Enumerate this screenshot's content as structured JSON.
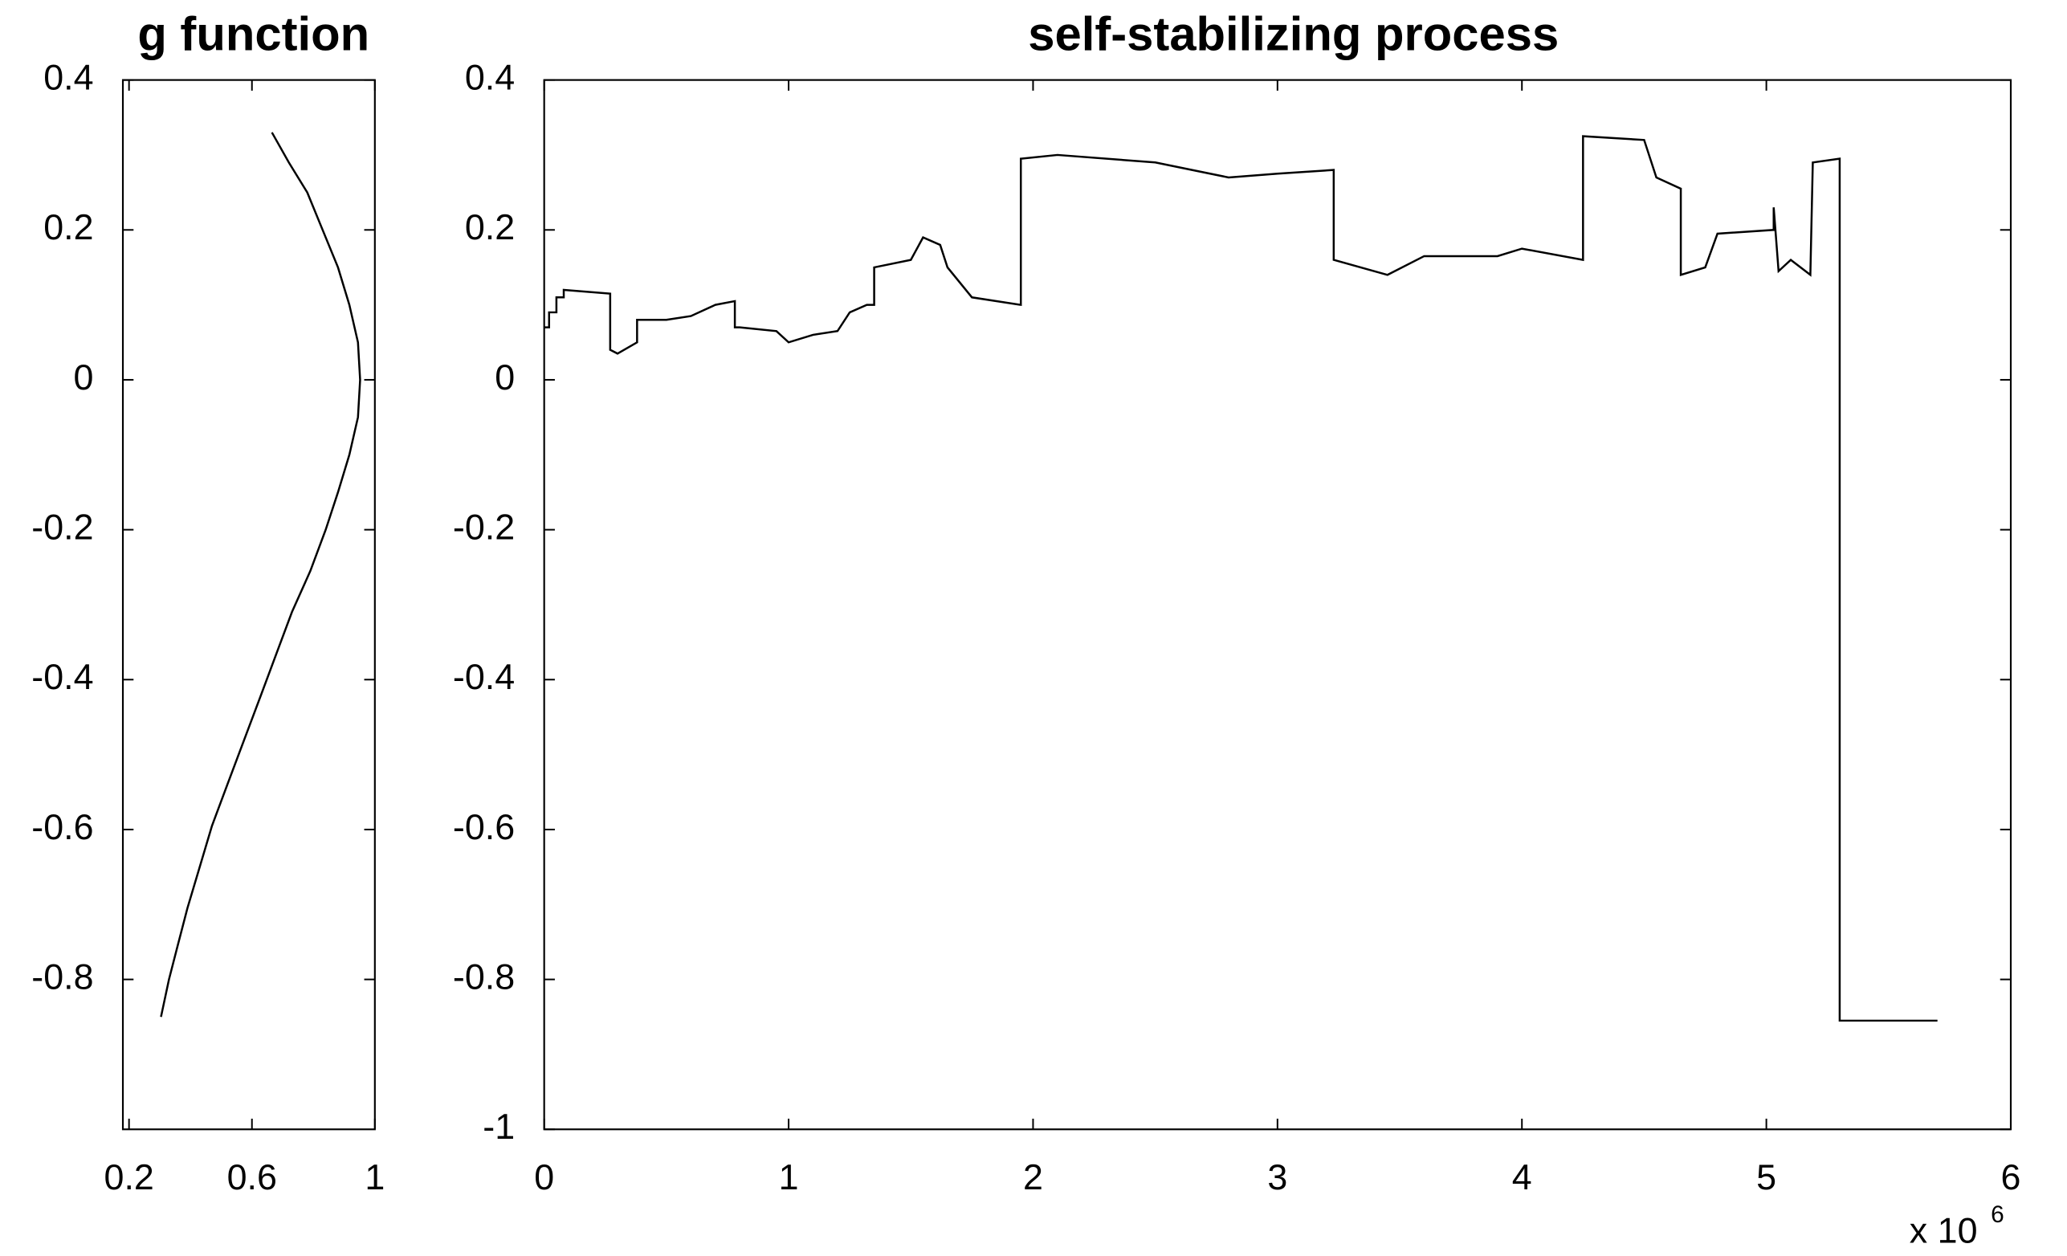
{
  "chart_data": [
    {
      "type": "line",
      "title": "g function",
      "x": [
        0.665,
        0.72,
        0.78,
        0.83,
        0.88,
        0.917,
        0.945,
        0.952,
        0.945,
        0.917,
        0.88,
        0.84,
        0.79,
        0.73,
        0.68,
        0.63,
        0.575,
        0.52,
        0.47,
        0.43,
        0.39,
        0.357,
        0.33,
        0.304
      ],
      "values": [
        0.33,
        0.29,
        0.25,
        0.2,
        0.15,
        0.1,
        0.05,
        0,
        -0.05,
        -0.1,
        -0.15,
        -0.2,
        -0.255,
        -0.31,
        -0.365,
        -0.42,
        -0.48,
        -0.54,
        -0.595,
        -0.65,
        -0.705,
        -0.757,
        -0.8,
        -0.85
      ],
      "color": "#000000",
      "xlim": [
        0.18,
        1
      ],
      "xticks": [
        0.2,
        0.6,
        1
      ],
      "ylim": [
        -1,
        0.4
      ],
      "yticks": [
        -0.8,
        -0.6,
        -0.4,
        -0.2,
        0,
        0.2,
        0.4
      ]
    },
    {
      "type": "line",
      "title": "self-stabilizing process",
      "x_multiplier": "x 10",
      "x_exponent": "6",
      "x": [
        0,
        0.02,
        0.02,
        0.05,
        0.05,
        0.08,
        0.08,
        0.27,
        0.27,
        0.3,
        0.38,
        0.38,
        0.5,
        0.6,
        0.7,
        0.78,
        0.78,
        0.8,
        0.95,
        1.0,
        1.1,
        1.2,
        1.25,
        1.32,
        1.35,
        1.35,
        1.5,
        1.55,
        1.62,
        1.65,
        1.75,
        1.95,
        1.95,
        2.1,
        2.5,
        2.65,
        2.8,
        3.0,
        3.23,
        3.23,
        3.45,
        3.6,
        3.9,
        4.0,
        4.25,
        4.25,
        4.5,
        4.55,
        4.65,
        4.65,
        4.75,
        4.8,
        5.03,
        5.03,
        5.05,
        5.1,
        5.18,
        5.19,
        5.3,
        5.3,
        5.7
      ],
      "values": [
        0.07,
        0.07,
        0.09,
        0.09,
        0.11,
        0.11,
        0.12,
        0.115,
        0.04,
        0.035,
        0.05,
        0.08,
        0.08,
        0.085,
        0.1,
        0.105,
        0.07,
        0.07,
        0.065,
        0.05,
        0.06,
        0.065,
        0.09,
        0.1,
        0.1,
        0.15,
        0.16,
        0.19,
        0.18,
        0.15,
        0.11,
        0.1,
        0.295,
        0.3,
        0.29,
        0.28,
        0.27,
        0.275,
        0.28,
        0.16,
        0.14,
        0.165,
        0.165,
        0.175,
        0.16,
        0.325,
        0.32,
        0.27,
        0.255,
        0.14,
        0.15,
        0.195,
        0.2,
        0.23,
        0.145,
        0.16,
        0.14,
        0.29,
        0.295,
        -0.855,
        -0.855
      ],
      "color": "#000000",
      "xlim": [
        0,
        6
      ],
      "xticks": [
        0,
        1,
        2,
        3,
        4,
        5,
        6
      ],
      "ylim": [
        -1,
        0.4
      ],
      "yticks": [
        -1,
        -0.8,
        -0.6,
        -0.4,
        -0.2,
        0,
        0.2,
        0.4
      ]
    }
  ]
}
